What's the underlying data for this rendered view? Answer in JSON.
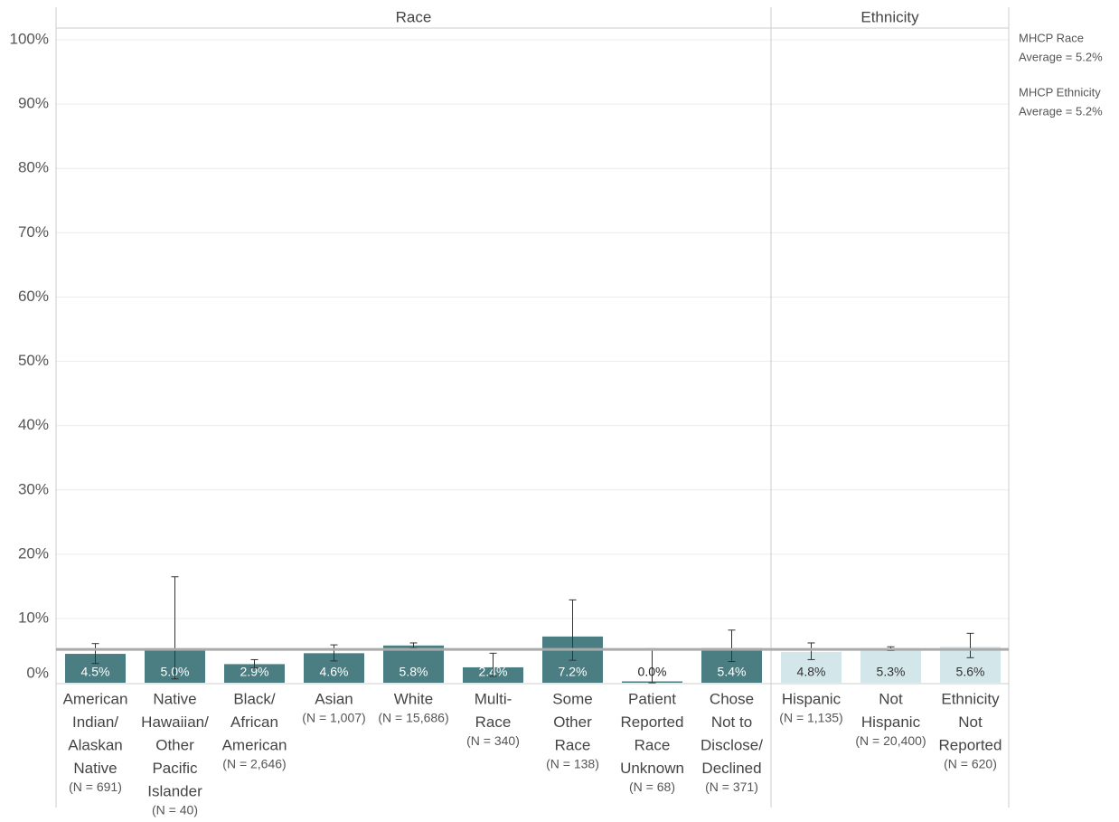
{
  "chart_data": {
    "type": "bar",
    "ylim": [
      0,
      100
    ],
    "yticks": [
      0,
      10,
      20,
      30,
      40,
      50,
      60,
      70,
      80,
      90,
      100
    ],
    "ytick_labels": [
      "0%",
      "10%",
      "20%",
      "30%",
      "40%",
      "50%",
      "60%",
      "70%",
      "80%",
      "90%",
      "100%"
    ],
    "grid": true,
    "panels": [
      {
        "title": "Race",
        "color": "#4a7e82",
        "label_color": "#ffffff",
        "average": 5.2,
        "categories": [
          {
            "lines": [
              "American",
              "Indian/",
              "Alaskan",
              "Native"
            ],
            "n": "(N = 691)",
            "value": 4.5,
            "label": "4.5%",
            "ci": [
              3.0,
              6.1
            ]
          },
          {
            "lines": [
              "Native",
              "Hawaiian/",
              "Other",
              "Pacific",
              "Islander"
            ],
            "n": "(N = 40)",
            "value": 5.0,
            "label": "5.0%",
            "ci": [
              0.6,
              16.5
            ]
          },
          {
            "lines": [
              "Black/",
              "African",
              "American"
            ],
            "n": "(N = 2,646)",
            "value": 2.9,
            "label": "2.9%",
            "ci": [
              2.3,
              3.6
            ]
          },
          {
            "lines": [
              "Asian"
            ],
            "n": "(N = 1,007)",
            "value": 4.6,
            "label": "4.6%",
            "ci": [
              3.4,
              5.9
            ]
          },
          {
            "lines": [
              "White"
            ],
            "n": "(N = 15,686)",
            "value": 5.8,
            "label": "5.8%",
            "ci": [
              5.4,
              6.2
            ]
          },
          {
            "lines": [
              "Multi-",
              "Race"
            ],
            "n": "(N = 340)",
            "value": 2.4,
            "label": "2.4%",
            "ci": [
              1.0,
              4.6
            ]
          },
          {
            "lines": [
              "Some",
              "Other",
              "Race"
            ],
            "n": "(N = 138)",
            "value": 7.2,
            "label": "7.2%",
            "ci": [
              3.5,
              12.9
            ]
          },
          {
            "lines": [
              "Patient",
              "Reported",
              "Race",
              "Unknown"
            ],
            "n": "(N = 68)",
            "value": 0.0,
            "label": "0.0%",
            "ci": [
              0.0,
              5.3
            ]
          },
          {
            "lines": [
              "Chose",
              "Not to",
              "Disclose/",
              "Declined"
            ],
            "n": "(N = 371)",
            "value": 5.4,
            "label": "5.4%",
            "ci": [
              3.3,
              8.2
            ]
          }
        ]
      },
      {
        "title": "Ethnicity",
        "color": "#d3e6e9",
        "label_color": "#333333",
        "average": 5.2,
        "categories": [
          {
            "lines": [
              "Hispanic"
            ],
            "n": "(N = 1,135)",
            "value": 4.8,
            "label": "4.8%",
            "ci": [
              3.6,
              6.2
            ]
          },
          {
            "lines": [
              "Not",
              "Hispanic"
            ],
            "n": "(N = 20,400)",
            "value": 5.3,
            "label": "5.3%",
            "ci": [
              5.0,
              5.6
            ]
          },
          {
            "lines": [
              "Ethnicity",
              "Not",
              "Reported"
            ],
            "n": "(N = 620)",
            "value": 5.6,
            "label": "5.6%",
            "ci": [
              3.9,
              7.7
            ]
          }
        ]
      }
    ],
    "legend": [
      {
        "lines": [
          "MHCP Race",
          "Average = 5.2%"
        ]
      },
      {
        "lines": [
          "MHCP Ethnicity",
          "Average = 5.2%"
        ]
      }
    ]
  }
}
